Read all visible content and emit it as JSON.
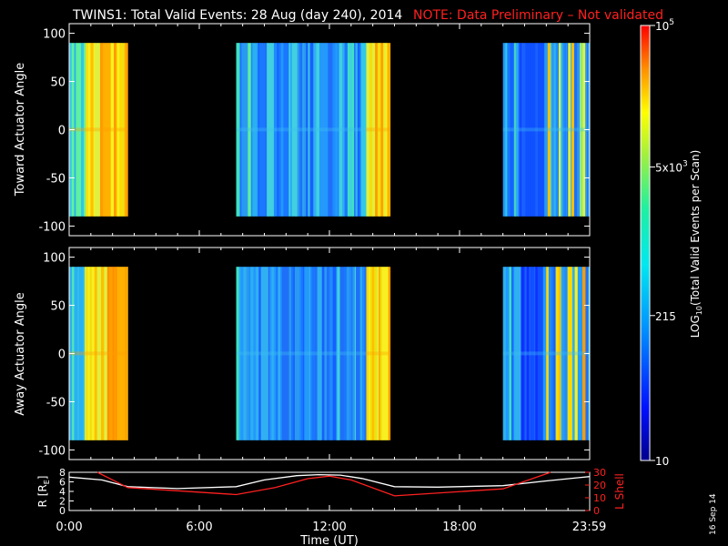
{
  "title": "TWINS1: Total Valid Events: 28 Aug (day 240), 2014",
  "note": "NOTE: Data Preliminary – Not validated",
  "stamp": "16 Sep 14",
  "colors": {
    "note": "#ff2020",
    "axis": "#ffffff",
    "lshell": "#ff2020",
    "r": "#ffffff"
  },
  "chart_data": [
    {
      "type": "heatmap",
      "name": "toward",
      "ylabel": "Toward Actuator Angle",
      "ylim": [
        -110,
        110
      ],
      "yticks": [
        100,
        50,
        0,
        -50,
        -100
      ],
      "xlim": [
        0,
        24
      ],
      "data_angle_range": [
        -90,
        90
      ],
      "segments": [
        {
          "start": 0.0,
          "end": 2.7,
          "level": "high"
        },
        {
          "start": 7.7,
          "end": 13.7,
          "level": "mid"
        },
        {
          "start": 13.7,
          "end": 14.8,
          "level": "high"
        },
        {
          "start": 20.0,
          "end": 24.0,
          "level": "mid"
        }
      ]
    },
    {
      "type": "heatmap",
      "name": "away",
      "ylabel": "Away Actuator Angle",
      "ylim": [
        -110,
        110
      ],
      "yticks": [
        100,
        50,
        0,
        -50,
        -100
      ],
      "xlim": [
        0,
        24
      ],
      "data_angle_range": [
        -90,
        90
      ],
      "segments": [
        {
          "start": 0.0,
          "end": 2.7,
          "level": "high"
        },
        {
          "start": 7.7,
          "end": 13.7,
          "level": "mid"
        },
        {
          "start": 13.7,
          "end": 14.8,
          "level": "high"
        },
        {
          "start": 20.0,
          "end": 24.0,
          "level": "mid"
        }
      ]
    },
    {
      "type": "line",
      "name": "orbit",
      "xlabel": "Time (UT)",
      "xticks": [
        {
          "t": 0,
          "label": "0:00"
        },
        {
          "t": 6,
          "label": "6:00"
        },
        {
          "t": 12,
          "label": "12:00"
        },
        {
          "t": 18,
          "label": "18:00"
        },
        {
          "t": 23.98,
          "label": "23:59"
        }
      ],
      "ylabel_left": "R [R",
      "ylabel_left_sub": "E",
      "ylabel_left_end": "]",
      "ylim_left": [
        0,
        8
      ],
      "yticks_left": [
        0,
        2,
        4,
        6,
        8
      ],
      "ylabel_right": "L Shell",
      "ylim_right": [
        0,
        30
      ],
      "yticks_right": [
        0,
        10,
        20,
        30
      ],
      "series": [
        {
          "name": "R",
          "axis": "left",
          "x": [
            0,
            1.5,
            2.7,
            5,
            7.7,
            9,
            10.5,
            11.5,
            12.5,
            13.5,
            15,
            17,
            20,
            22,
            24
          ],
          "y": [
            7.0,
            6.4,
            5.0,
            4.6,
            5.0,
            6.4,
            7.3,
            7.5,
            7.4,
            6.7,
            5.0,
            4.9,
            5.2,
            6.2,
            7.1
          ]
        },
        {
          "name": "L Shell",
          "axis": "right",
          "x": [
            1.3,
            2.7,
            7.7,
            9.5,
            11,
            12,
            13,
            15,
            20,
            22.2
          ],
          "y": [
            30,
            18,
            12.5,
            18,
            25,
            27,
            24,
            11.5,
            17,
            30
          ]
        }
      ]
    },
    {
      "type": "colorbar",
      "name": "colorbar",
      "label_pre": "LOG",
      "label_sub": "10",
      "label_post": "(Total Valid Events per Scan)",
      "range": [
        10,
        100000
      ],
      "ticks": [
        {
          "value": 100000,
          "base": "10",
          "sup": "5"
        },
        {
          "value": 5000,
          "base": "5x10",
          "sup": "3"
        },
        {
          "value": 215,
          "base": "215",
          "sup": ""
        },
        {
          "value": 10,
          "base": "10",
          "sup": ""
        }
      ]
    }
  ]
}
